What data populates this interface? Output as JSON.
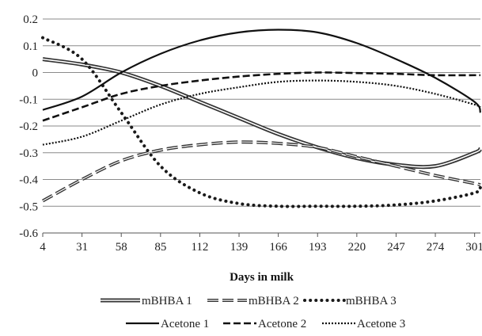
{
  "chart_data": {
    "type": "line",
    "title": "",
    "xlabel": "Days in milk",
    "ylabel": "",
    "xlim": [
      4,
      305
    ],
    "ylim": [
      -0.6,
      0.2
    ],
    "x_ticks": [
      4,
      31,
      58,
      85,
      112,
      139,
      166,
      193,
      220,
      247,
      274,
      301
    ],
    "y_ticks": [
      0.2,
      0.1,
      0,
      -0.1,
      -0.2,
      -0.3,
      -0.4,
      -0.5,
      -0.6
    ],
    "y_tick_labels": [
      "0.2",
      "0.1",
      "0",
      "-0.1",
      "-0.2",
      "-0.3",
      "-0.4",
      "-0.5",
      "-0.6"
    ],
    "grid": "horizontal",
    "legend_position": "bottom",
    "x": [
      4,
      31,
      58,
      85,
      112,
      139,
      166,
      193,
      220,
      247,
      274,
      301,
      305
    ],
    "series": [
      {
        "name": "mBHBA 1",
        "style": "double",
        "values": [
          0.05,
          0.03,
          0.0,
          -0.05,
          -0.11,
          -0.17,
          -0.23,
          -0.28,
          -0.32,
          -0.345,
          -0.35,
          -0.3,
          -0.285
        ]
      },
      {
        "name": "mBHBA 2",
        "style": "dashed-long",
        "values": [
          -0.48,
          -0.4,
          -0.33,
          -0.29,
          -0.27,
          -0.26,
          -0.265,
          -0.28,
          -0.315,
          -0.35,
          -0.385,
          -0.415,
          -0.42
        ]
      },
      {
        "name": "mBHBA 3",
        "style": "dotted-heavy",
        "values": [
          0.13,
          0.05,
          -0.15,
          -0.35,
          -0.45,
          -0.49,
          -0.5,
          -0.5,
          -0.5,
          -0.495,
          -0.48,
          -0.45,
          -0.43
        ]
      },
      {
        "name": "Acetone 1",
        "style": "solid",
        "values": [
          -0.14,
          -0.09,
          0.0,
          0.07,
          0.12,
          0.15,
          0.16,
          0.15,
          0.11,
          0.05,
          -0.02,
          -0.11,
          -0.15
        ]
      },
      {
        "name": "Acetone 2",
        "style": "dashed",
        "values": [
          -0.18,
          -0.13,
          -0.08,
          -0.05,
          -0.03,
          -0.015,
          -0.005,
          0.0,
          -0.002,
          -0.005,
          -0.01,
          -0.01,
          -0.01
        ]
      },
      {
        "name": "Acetone 3",
        "style": "dotted-fine",
        "values": [
          -0.27,
          -0.24,
          -0.18,
          -0.12,
          -0.08,
          -0.055,
          -0.035,
          -0.03,
          -0.035,
          -0.05,
          -0.08,
          -0.12,
          -0.13
        ]
      }
    ],
    "legend_rows": [
      [
        "mBHBA 1",
        "mBHBA 2",
        "mBHBA 3"
      ],
      [
        "Acetone 1",
        "Acetone 2",
        "Acetone 3"
      ]
    ]
  }
}
